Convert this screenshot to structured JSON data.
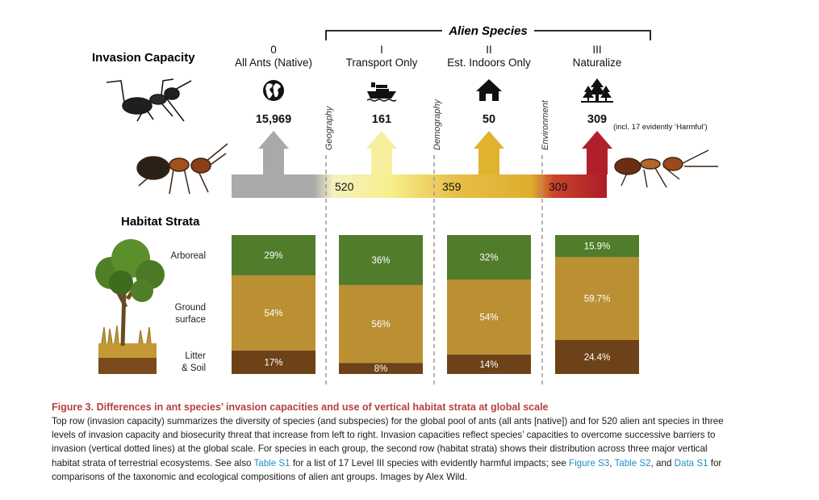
{
  "figure": {
    "alien_species_label": "Alien Species",
    "row1_title": "Invasion Capacity",
    "row2_title": "Habitat Strata",
    "levels": [
      {
        "numeral": "0",
        "name": "All Ants (Native)",
        "count": "15,969",
        "icon": "globe-icon",
        "arrow_color": "#a9a9a9"
      },
      {
        "numeral": "I",
        "name": "Transport Only",
        "count": "161",
        "icon": "ship-icon",
        "arrow_color": "#f6ef9d"
      },
      {
        "numeral": "II",
        "name": "Est. Indoors Only",
        "count": "50",
        "icon": "house-icon",
        "arrow_color": "#e0b32e"
      },
      {
        "numeral": "III",
        "name": "Naturalize",
        "count": "309",
        "icon": "forest-icon",
        "arrow_color": "#b0202b"
      }
    ],
    "harmful_note": "(incl. 17 evidently ‘Harmful’)",
    "barriers": [
      "Geography",
      "Demography",
      "Environment"
    ],
    "flow_numbers": [
      "520",
      "359",
      "309"
    ],
    "strata_labels": {
      "arboreal": "Arboreal",
      "ground_line1": "Ground",
      "ground_line2": "surface",
      "litter_line1": "Litter",
      "litter_line2": "& Soil"
    },
    "colors": {
      "arboreal": "#517c2b",
      "ground": "#ba9033",
      "litter": "#6e4218",
      "ribbon_gray": "#aaaaaa",
      "ribbon_red": "#b0202b"
    }
  },
  "chart_data": {
    "type": "bar",
    "stacked": true,
    "categories": [
      "All Ants (Native)",
      "Transport Only",
      "Est. Indoors Only",
      "Naturalize"
    ],
    "series": [
      {
        "name": "Litter & Soil",
        "values": [
          17,
          8,
          14,
          24.4
        ],
        "labels": [
          "17%",
          "8%",
          "14%",
          "24.4%"
        ]
      },
      {
        "name": "Ground surface",
        "values": [
          54,
          56,
          54,
          59.7
        ],
        "labels": [
          "54%",
          "56%",
          "54%",
          "59.7%"
        ]
      },
      {
        "name": "Arboreal",
        "values": [
          29,
          36,
          32,
          15.9
        ],
        "labels": [
          "29%",
          "36%",
          "32%",
          "15.9%"
        ]
      }
    ],
    "ylim": [
      0,
      100
    ]
  },
  "caption": {
    "title": "Figure 3.  Differences in ant species’ invasion capacities and use of vertical habitat strata at global scale",
    "line1": "Top row (invasion capacity) summarizes the diversity of species (and subspecies) for the global pool of ants (all ants [native]) and for 520 alien ant species in three",
    "line2": "levels of invasion capacity and biosecurity threat that increase from left to right. Invasion capacities reflect species’ capacities to overcome successive barriers to",
    "line3": "invasion (vertical dotted lines) at the global scale. For species in each group, the second row (habitat strata) shows their distribution across three major vertical",
    "line4a": "habitat strata of terrestrial ecosystems. See also ",
    "link_table_s1": "Table S1",
    "line4b": " for a list of 17 Level III species with evidently harmful impacts; see ",
    "link_figure_s3": "Figure S3",
    "sep1": ", ",
    "link_table_s2": "Table S2",
    "sep2": ", and ",
    "link_data_s1": "Data S1",
    "line4c": " for",
    "line5": "comparisons of the taxonomic and ecological compositions of alien ant groups. Images by Alex Wild."
  }
}
